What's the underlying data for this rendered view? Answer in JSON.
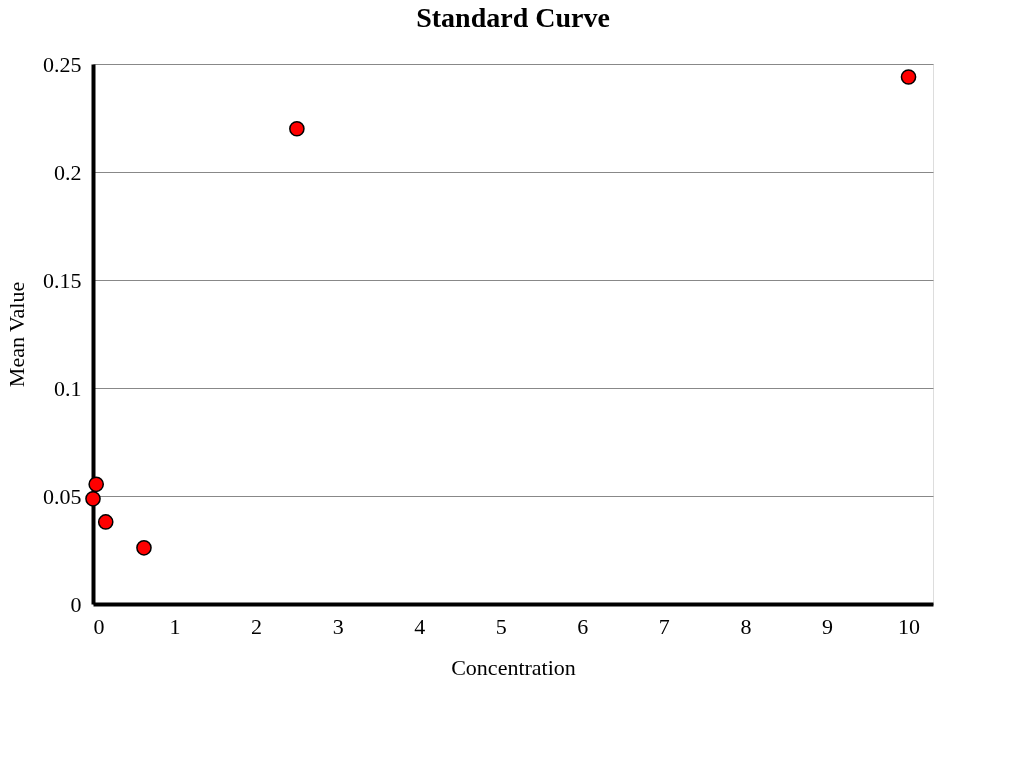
{
  "chart_data": {
    "type": "scatter",
    "title": "Standard Curve",
    "xlabel": "Concentration",
    "ylabel": "Mean Value",
    "x": [
      0,
      0.039,
      0.156,
      0.625,
      2.5,
      10
    ],
    "series": [
      {
        "color": "#ff0000",
        "values": [
          0.0487,
          0.0554,
          0.038,
          0.026,
          0.22,
          0.244
        ]
      }
    ],
    "xlim": [
      0,
      10.3
    ],
    "xticks": [
      0,
      1,
      2,
      3,
      4,
      5,
      6,
      7,
      8,
      9,
      10
    ],
    "ylim": [
      0,
      0.25
    ],
    "yticks": [
      0,
      0.05,
      0.1,
      0.15,
      0.2,
      0.25
    ],
    "grid": "y",
    "marker": "circle",
    "legend": false
  }
}
